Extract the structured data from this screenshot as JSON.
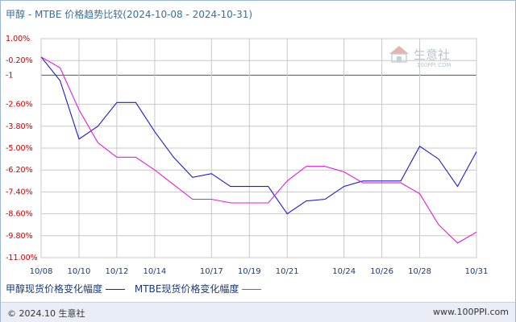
{
  "title": "甲醇 - MTBE 价格趋势比较(2024-10-08 - 2024-10-31)",
  "watermark": {
    "text": "生意社",
    "sub": "100PPI.COM"
  },
  "footer": {
    "left": "© 2024.10 生意社",
    "right": "www.100PPI.com"
  },
  "colors": {
    "series1": "#1c1cc8",
    "series2": "#e020d8",
    "grid": "#c8c8c8",
    "zero_line": "#555555"
  },
  "chart_data": {
    "type": "line",
    "y_ticks": [
      "1.00%",
      "-0.20%",
      "-1",
      "-2.60%",
      "-3.80%",
      "-5.00%",
      "-6.20%",
      "-7.40%",
      "-8.60%",
      "-9.80%",
      "-11.00%"
    ],
    "y_tick_values": [
      1.0,
      -0.2,
      -1.0,
      -2.6,
      -3.8,
      -5.0,
      -6.2,
      -7.4,
      -8.6,
      -9.8,
      -11.0
    ],
    "ylim": [
      -11.0,
      1.0
    ],
    "x_ticks": [
      "10/08",
      "10/10",
      "10/12",
      "10/14",
      "10/17",
      "10/19",
      "10/21",
      "10/24",
      "10/26",
      "10/28",
      "10/31"
    ],
    "x": [
      "10/08",
      "10/09",
      "10/10",
      "10/11",
      "10/12",
      "10/13",
      "10/14",
      "10/15",
      "10/16",
      "10/17",
      "10/18",
      "10/19",
      "10/20",
      "10/21",
      "10/22",
      "10/23",
      "10/24",
      "10/25",
      "10/26",
      "10/27",
      "10/28",
      "10/29",
      "10/30",
      "10/31"
    ],
    "series": [
      {
        "name": "甲醇现货价格变化幅度",
        "values": [
          0.0,
          -1.3,
          -4.5,
          -3.8,
          -2.5,
          -2.5,
          -4.1,
          -5.5,
          -6.6,
          -6.4,
          -7.1,
          -7.1,
          -7.1,
          -8.6,
          -7.9,
          -7.8,
          -7.1,
          -6.8,
          -6.8,
          -6.8,
          -4.9,
          -5.6,
          -7.1,
          -5.2
        ]
      },
      {
        "name": "MTBE现货价格变化幅度",
        "values": [
          0.0,
          -0.6,
          -2.9,
          -4.7,
          -5.5,
          -5.5,
          -6.2,
          -7.0,
          -7.8,
          -7.8,
          -8.0,
          -8.0,
          -8.0,
          -6.8,
          -6.0,
          -6.0,
          -6.3,
          -6.9,
          -6.9,
          -6.9,
          -7.5,
          -9.2,
          -10.2,
          -9.6
        ]
      }
    ]
  }
}
